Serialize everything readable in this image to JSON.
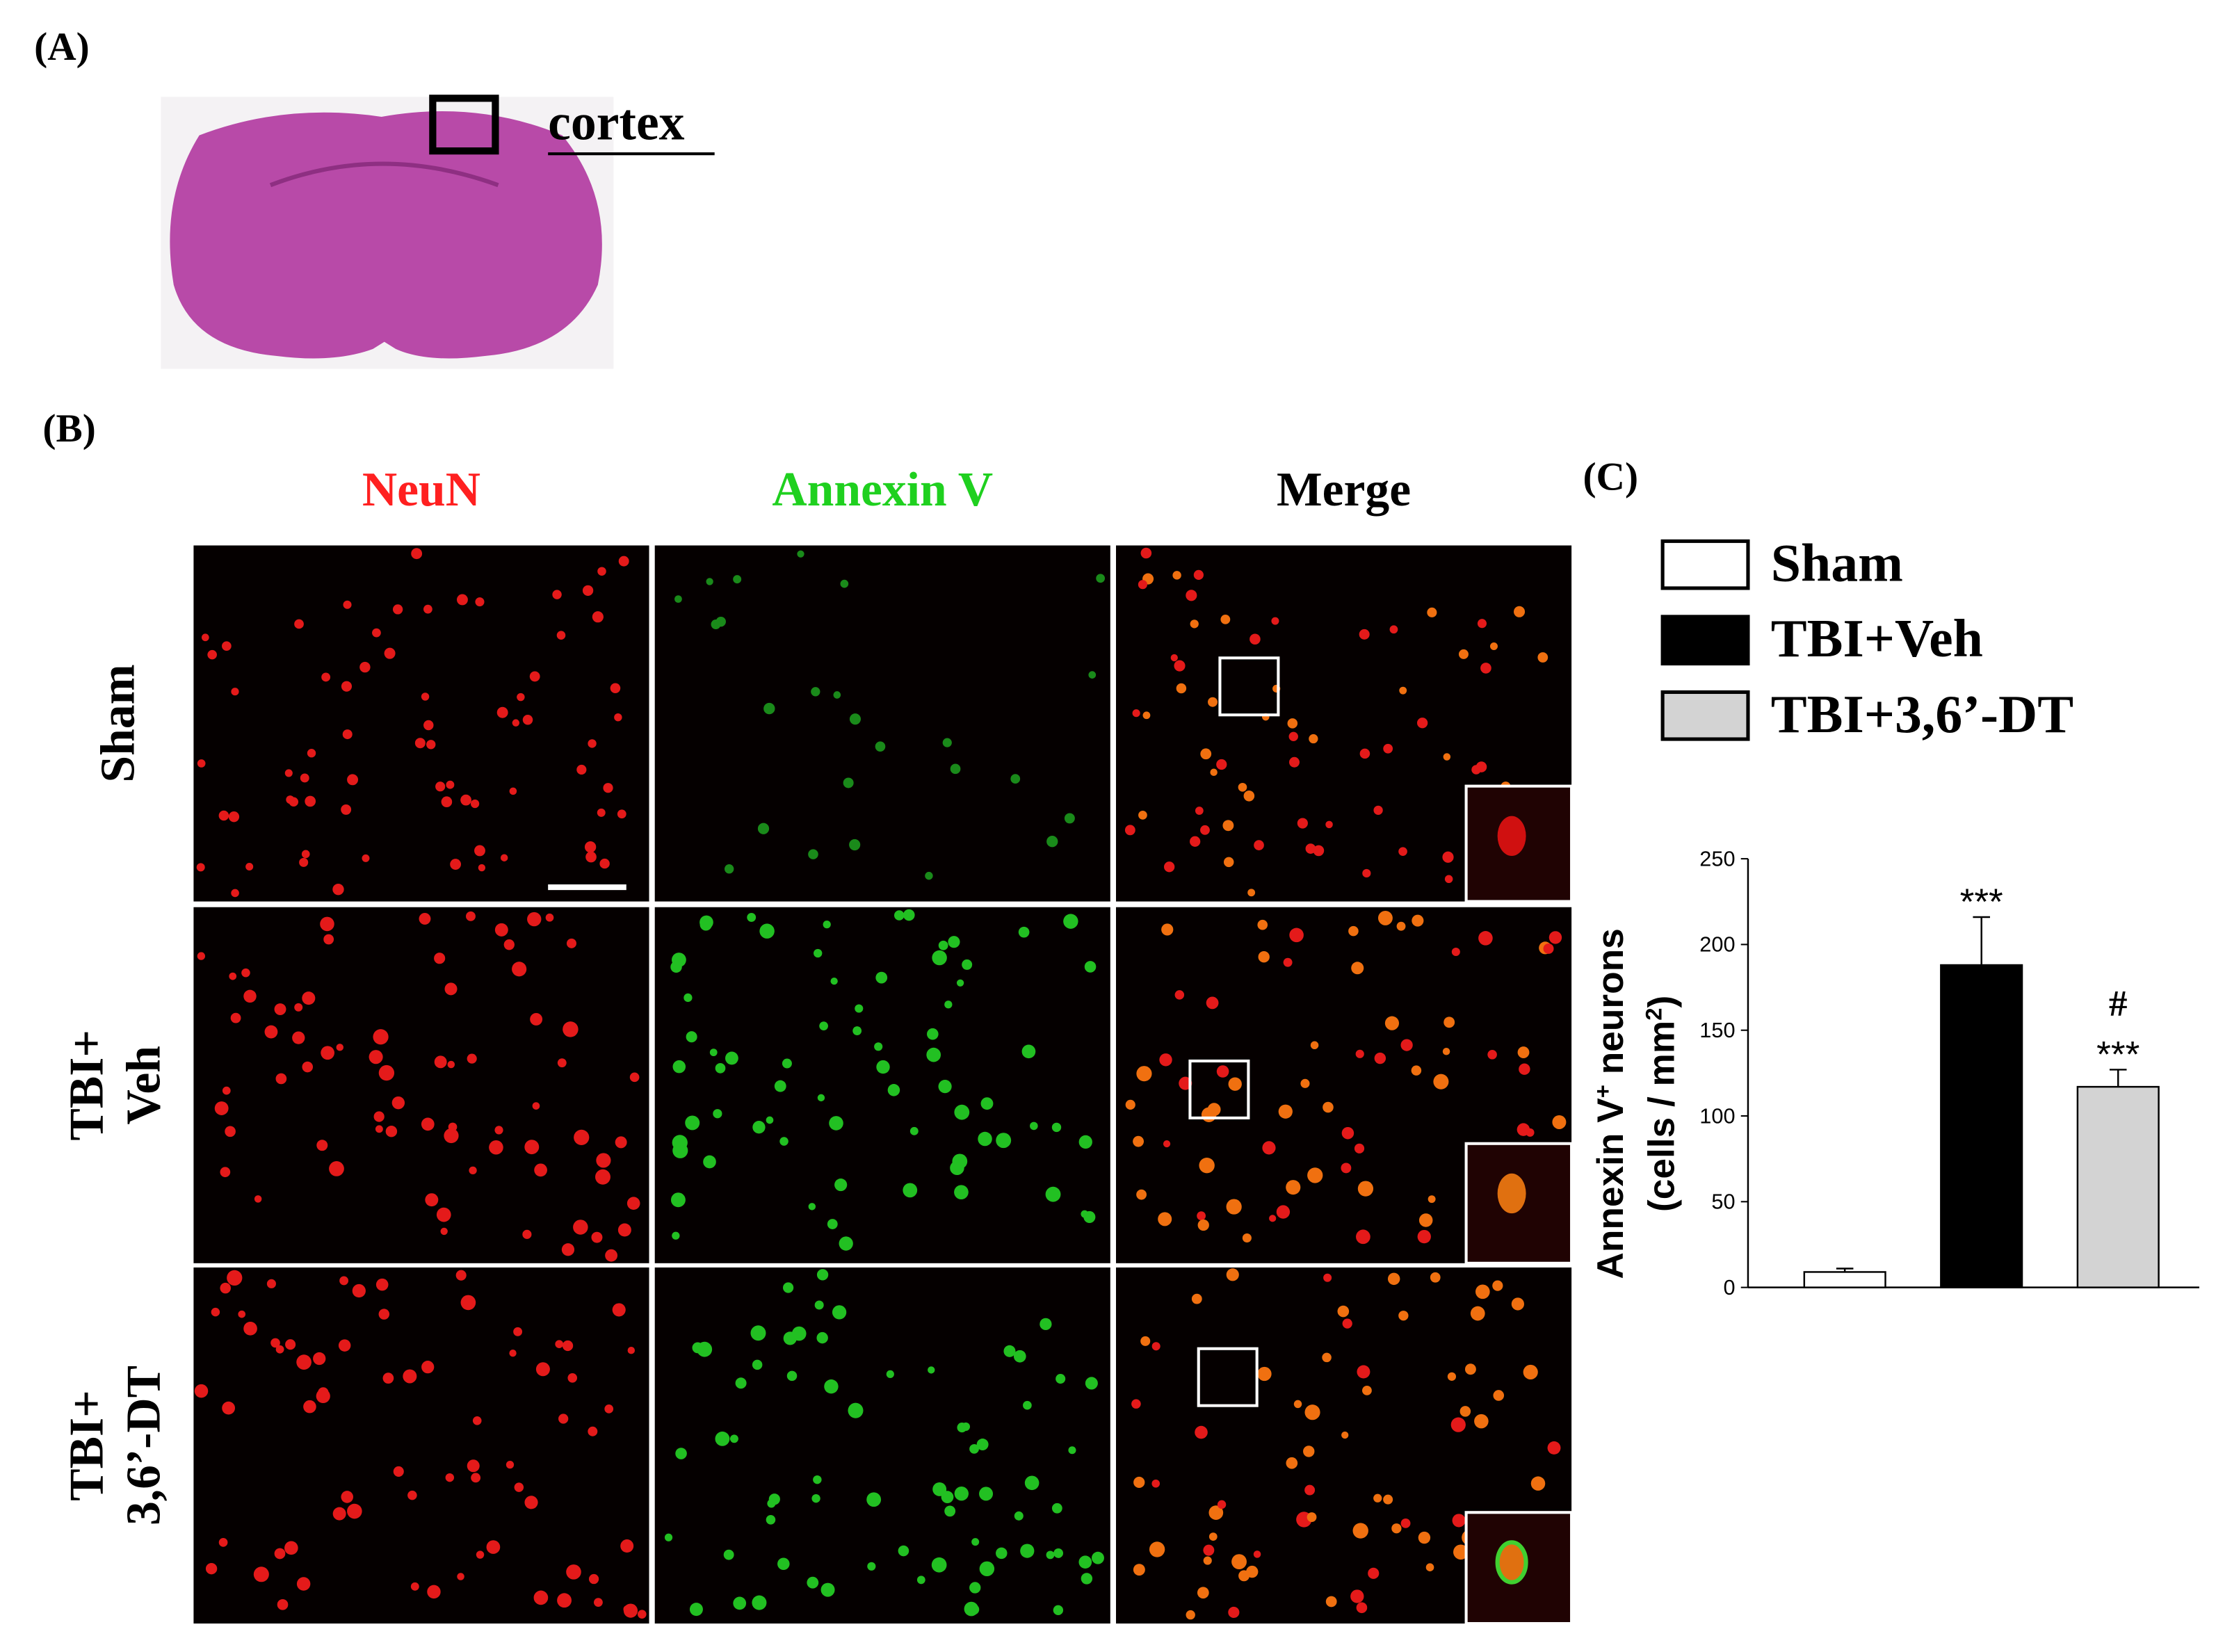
{
  "figure": {
    "panel_labels": {
      "a": "(A)",
      "b": "(B)",
      "c": "(C)"
    },
    "cortex_label": "cortex",
    "columns": [
      "NeuN",
      "Annexin V",
      "Merge"
    ],
    "rows": [
      [
        "Sham"
      ],
      [
        "TBI+",
        "Veh"
      ],
      [
        "TBI+",
        "3,6’-DT"
      ]
    ]
  },
  "chart_data": {
    "type": "bar",
    "categories": [
      "Sham",
      "TBI+Veh",
      "TBI+3,6’-DT"
    ],
    "values": [
      9,
      188,
      117
    ],
    "errors": [
      2,
      28,
      10
    ],
    "colors": [
      "#ffffff",
      "#000000",
      "#d3d3d3"
    ],
    "significance": [
      null,
      "***",
      "***"
    ],
    "significance_vs_veh": [
      null,
      null,
      "#"
    ],
    "ylabel": {
      "line1": [
        "Annexin V",
        "+",
        " neurons"
      ],
      "line2": [
        "(cells / mm",
        "2",
        ")"
      ]
    },
    "ylim": [
      0,
      250
    ],
    "yticks": [
      0,
      50,
      100,
      150,
      200,
      250
    ]
  }
}
